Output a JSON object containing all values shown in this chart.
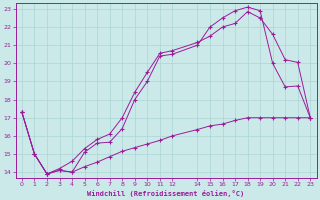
{
  "xlabel": "Windchill (Refroidissement éolien,°C)",
  "xlim": [
    -0.5,
    23.5
  ],
  "ylim": [
    13.7,
    23.3
  ],
  "xtick_positions": [
    0,
    1,
    2,
    3,
    4,
    5,
    6,
    7,
    8,
    9,
    10,
    11,
    12,
    14,
    15,
    16,
    17,
    18,
    19,
    20,
    21,
    22,
    23
  ],
  "xtick_labels": [
    "0",
    "1",
    "2",
    "3",
    "4",
    "5",
    "6",
    "7",
    "8",
    "9",
    "10",
    "11",
    "12",
    "14",
    "15",
    "16",
    "17",
    "18",
    "19",
    "20",
    "21",
    "22",
    "23"
  ],
  "ytick_positions": [
    14,
    15,
    16,
    17,
    18,
    19,
    20,
    21,
    22,
    23
  ],
  "ytick_labels": [
    "14",
    "15",
    "16",
    "17",
    "18",
    "19",
    "20",
    "21",
    "22",
    "23"
  ],
  "bg_color": "#cce9e9",
  "line_color": "#9b1b9b",
  "grid_color": "#aad4d4",
  "line1_x": [
    0,
    1,
    2,
    3,
    4,
    5,
    6,
    7,
    8,
    9,
    10,
    11,
    12,
    14,
    15,
    16,
    17,
    18,
    19,
    20,
    21,
    22,
    23
  ],
  "line1_y": [
    17.3,
    15.0,
    13.9,
    14.1,
    14.0,
    15.1,
    15.6,
    15.65,
    16.4,
    18.0,
    19.0,
    20.4,
    20.5,
    21.0,
    22.0,
    22.5,
    22.9,
    23.1,
    22.9,
    20.0,
    18.7,
    18.75,
    17.0
  ],
  "line2_x": [
    0,
    1,
    2,
    3,
    4,
    5,
    6,
    7,
    8,
    9,
    10,
    11,
    12,
    14,
    15,
    16,
    17,
    18,
    19,
    20,
    21,
    22,
    23
  ],
  "line2_y": [
    17.3,
    15.0,
    13.9,
    14.2,
    14.6,
    15.3,
    15.8,
    16.1,
    17.0,
    18.4,
    19.5,
    20.55,
    20.7,
    21.15,
    21.5,
    22.0,
    22.2,
    22.85,
    22.5,
    21.6,
    20.2,
    20.05,
    17.0
  ],
  "line3_x": [
    0,
    1,
    2,
    3,
    4,
    5,
    6,
    7,
    8,
    9,
    10,
    11,
    12,
    14,
    15,
    16,
    17,
    18,
    19,
    20,
    21,
    22,
    23
  ],
  "line3_y": [
    17.3,
    15.0,
    13.9,
    14.1,
    14.0,
    14.3,
    14.55,
    14.85,
    15.15,
    15.35,
    15.55,
    15.75,
    16.0,
    16.35,
    16.55,
    16.65,
    16.85,
    17.0,
    17.0,
    17.0,
    17.0,
    17.0,
    17.0
  ]
}
